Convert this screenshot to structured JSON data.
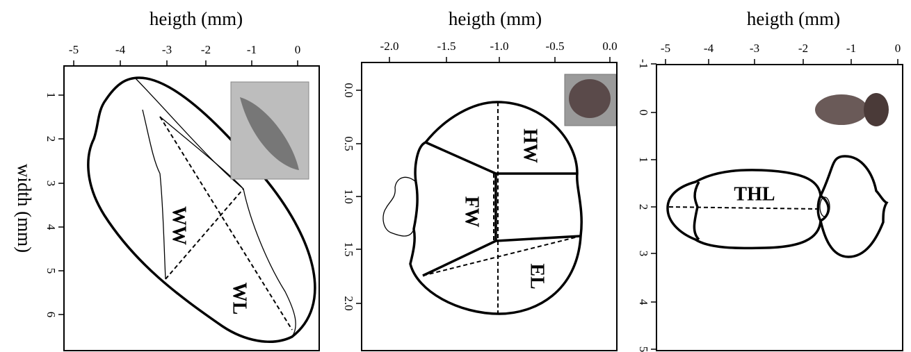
{
  "y_axis_label": "width (mm)",
  "panels": [
    {
      "x_axis_label": "heigth (mm)",
      "xticks": [
        "-5",
        "-4",
        "-3",
        "-2",
        "-1",
        "0"
      ],
      "yticks": [
        "1",
        "2",
        "3",
        "4",
        "5",
        "6"
      ],
      "labels": [
        "WW",
        "WL"
      ]
    },
    {
      "x_axis_label": "heigth (mm)",
      "xticks": [
        "-2.0",
        "-1.5",
        "-1.0",
        "-0.5",
        "0.0"
      ],
      "yticks": [
        "0.0",
        "0.5",
        "1.0",
        "1.5",
        "2.0"
      ],
      "labels": [
        "HW",
        "FW",
        "EL"
      ]
    },
    {
      "x_axis_label": "heigth (mm)",
      "xticks": [
        "-5",
        "-4",
        "-3",
        "-2",
        "-1",
        "0"
      ],
      "yticks": [
        "-1",
        "0",
        "1",
        "2",
        "3",
        "4",
        "5"
      ],
      "labels": [
        "THL"
      ]
    }
  ]
}
